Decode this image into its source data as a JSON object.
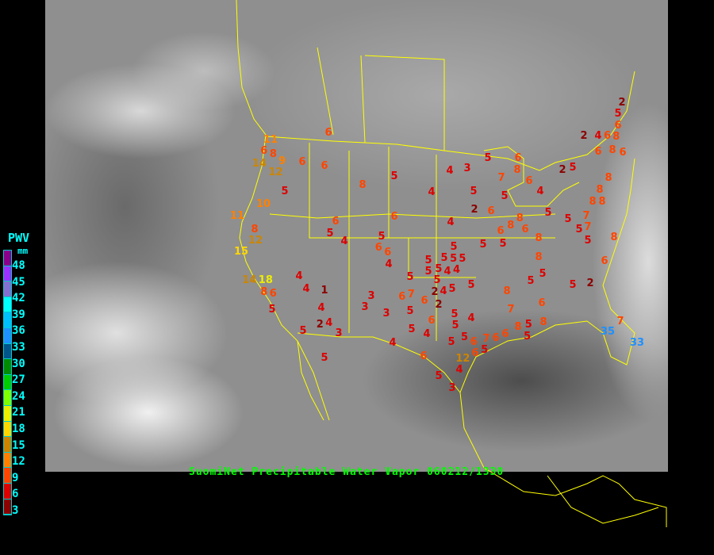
{
  "title": "SuomiNet Precipitable Water Vapor 060212/1330",
  "legend": {
    "title": "PWV",
    "unit": "mm",
    "ticks": [
      "48",
      "45",
      "42",
      "39",
      "36",
      "33",
      "30",
      "27",
      "24",
      "21",
      "18",
      "15",
      "12",
      "9",
      "6",
      "3"
    ],
    "colors": [
      "#8b008b",
      "#9b30ff",
      "#8470d0",
      "#00ffff",
      "#00bfff",
      "#1e90ff",
      "#00558b",
      "#008b00",
      "#00cd00",
      "#7fff00",
      "#eeee00",
      "#ffd700",
      "#cd8500",
      "#ff8000",
      "#ff4500",
      "#dd0000",
      "#8b0000"
    ]
  },
  "station_values": [
    2,
    5,
    6,
    2,
    4,
    6,
    8,
    6,
    8,
    6,
    5,
    2,
    8,
    8,
    8,
    8,
    7,
    7,
    5,
    8,
    5,
    6,
    5,
    6,
    8,
    3,
    4,
    7,
    6,
    4,
    5,
    5,
    4,
    5,
    8,
    6,
    6,
    6,
    5,
    10,
    11,
    11,
    6,
    8,
    9,
    14,
    12,
    8,
    12,
    15,
    14,
    18,
    8,
    6,
    5,
    4,
    4,
    1,
    4,
    2,
    4,
    3,
    5,
    5,
    6,
    5,
    4,
    6,
    4,
    2,
    6,
    8,
    5,
    6,
    8,
    6,
    8,
    5,
    5,
    5,
    8,
    5,
    6,
    6,
    4,
    5,
    5,
    5,
    5,
    5,
    5,
    5,
    4,
    4,
    5,
    2,
    4,
    5,
    5,
    5,
    6,
    7,
    6,
    2,
    3,
    3,
    3,
    5,
    5,
    6,
    5,
    5,
    4,
    4,
    5,
    5,
    6,
    6,
    5,
    7,
    6,
    6,
    8,
    5,
    5,
    8,
    8,
    7,
    5,
    5,
    6,
    5,
    2,
    4,
    6,
    5,
    3,
    4,
    12,
    7,
    35,
    33
  ],
  "colors": {
    "map_border": "#ffff00",
    "title": "#00ff00",
    "legend_text": "#00ffff"
  }
}
